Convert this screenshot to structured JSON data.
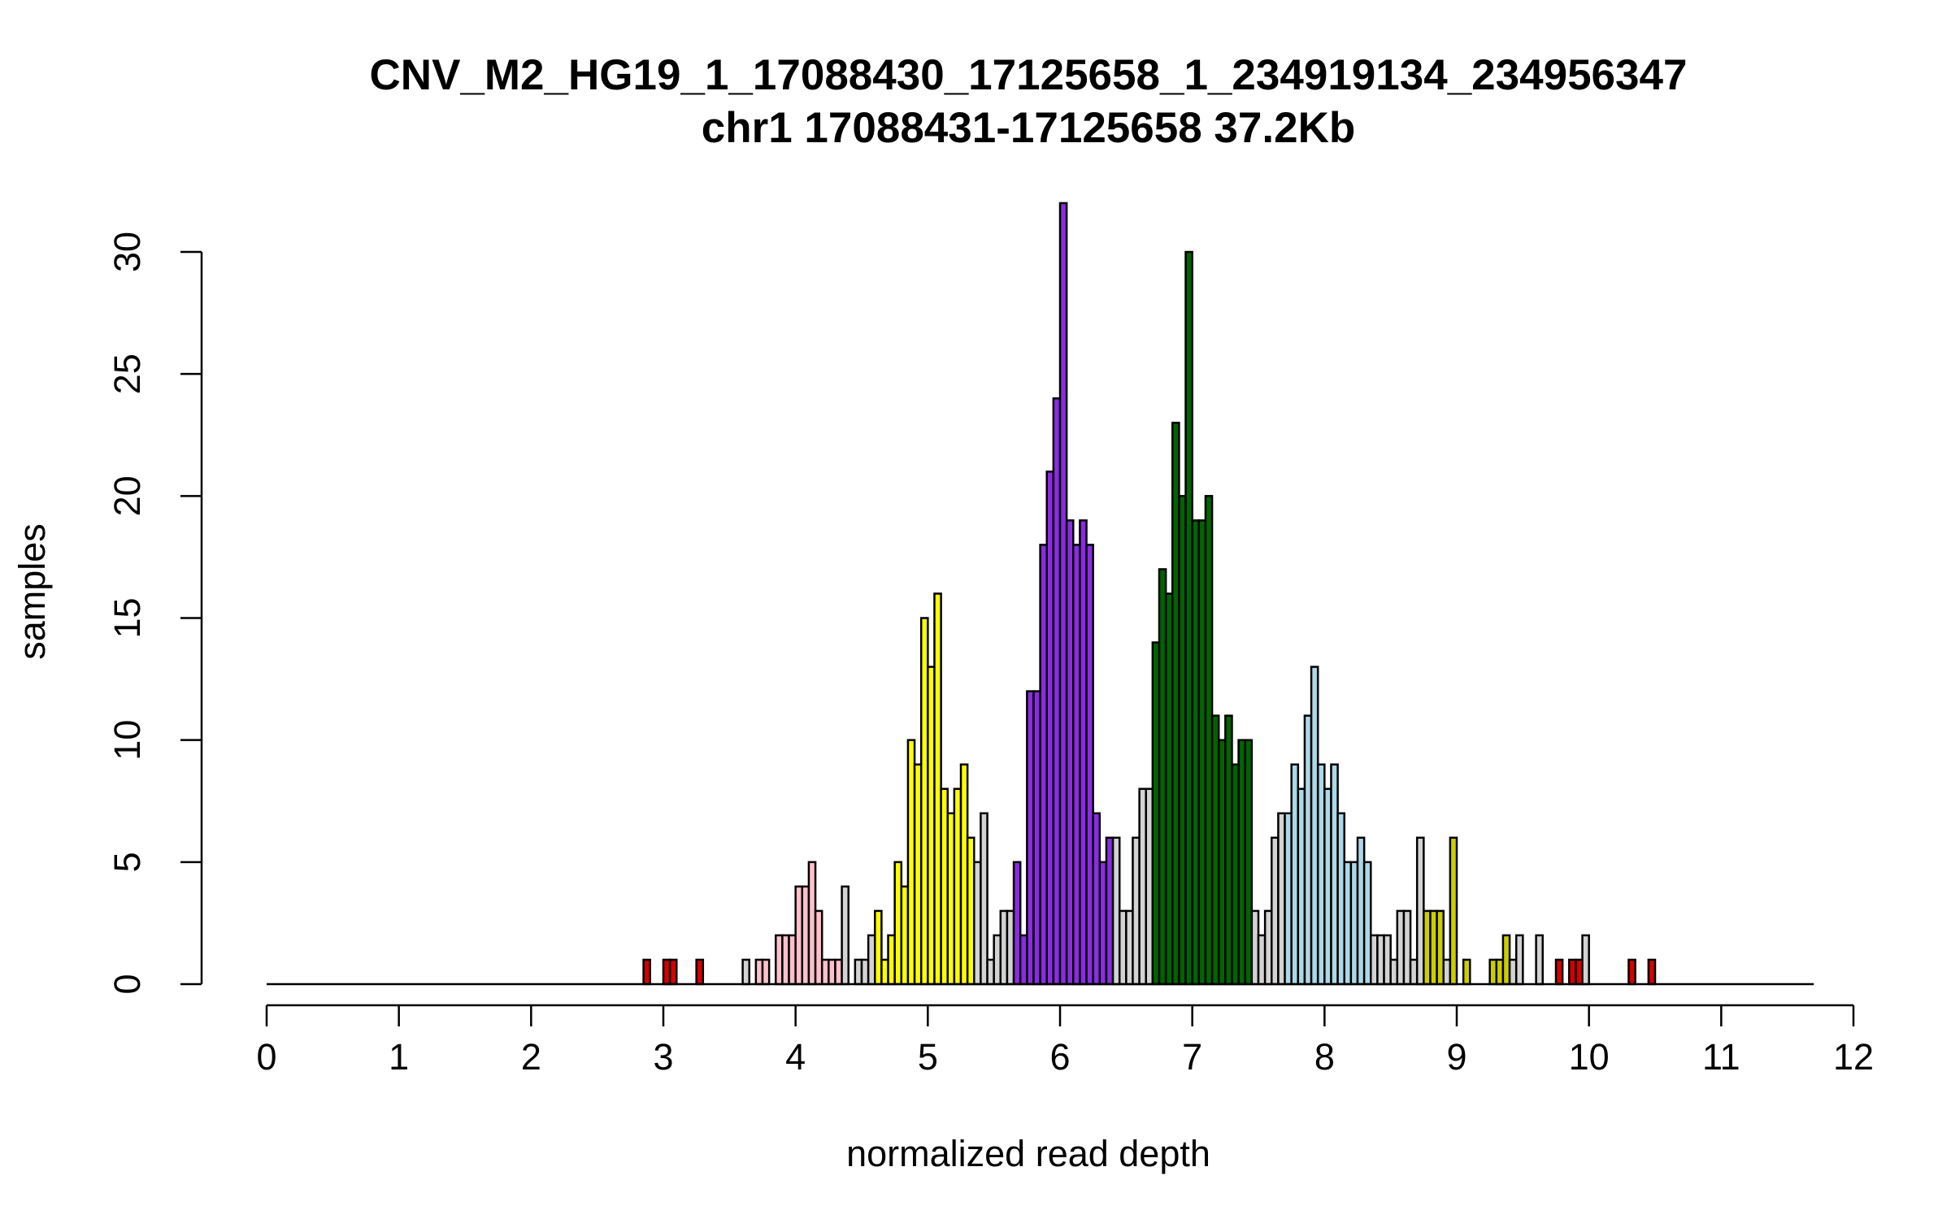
{
  "chart_data": {
    "type": "bar",
    "title": "CNV_M2_HG19_1_17088430_17125658_1_234919134_234956347",
    "subtitle": "chr1 17088431-17125658 37.2Kb",
    "xlabel": "normalized read depth",
    "ylabel": "samples",
    "xlim": [
      0,
      12
    ],
    "ylim": [
      0,
      30
    ],
    "x_ticks": [
      "0",
      "1",
      "2",
      "3",
      "4",
      "5",
      "6",
      "7",
      "8",
      "9",
      "10",
      "11",
      "12"
    ],
    "y_ticks": [
      "0",
      "5",
      "10",
      "15",
      "20",
      "25",
      "30"
    ],
    "bin_width": 0.05,
    "baseline": [
      0,
      11.7
    ],
    "series_colors": {
      "gray": "#d3d3d3",
      "red": "#d40000",
      "pink": "#ffc0cb",
      "yellow": "#ffff00",
      "purple": "#8b2be2",
      "green": "#006400",
      "lightblue": "#add8e6",
      "olive": "#cdcd00"
    },
    "bins": [
      [
        2.85,
        1,
        "red"
      ],
      [
        3.0,
        1,
        "red"
      ],
      [
        3.05,
        1,
        "red"
      ],
      [
        3.25,
        1,
        "red"
      ],
      [
        3.6,
        1,
        "gray"
      ],
      [
        3.7,
        1,
        "pink"
      ],
      [
        3.75,
        1,
        "pink"
      ],
      [
        3.85,
        2,
        "pink"
      ],
      [
        3.9,
        2,
        "pink"
      ],
      [
        3.95,
        2,
        "pink"
      ],
      [
        4.0,
        4,
        "pink"
      ],
      [
        4.05,
        4,
        "pink"
      ],
      [
        4.1,
        5,
        "pink"
      ],
      [
        4.15,
        3,
        "pink"
      ],
      [
        4.2,
        1,
        "pink"
      ],
      [
        4.25,
        1,
        "pink"
      ],
      [
        4.3,
        1,
        "pink"
      ],
      [
        4.35,
        4,
        "gray"
      ],
      [
        4.45,
        1,
        "gray"
      ],
      [
        4.5,
        1,
        "gray"
      ],
      [
        4.55,
        2,
        "gray"
      ],
      [
        4.6,
        3,
        "yellow"
      ],
      [
        4.65,
        1,
        "yellow"
      ],
      [
        4.7,
        2,
        "yellow"
      ],
      [
        4.75,
        5,
        "yellow"
      ],
      [
        4.8,
        4,
        "yellow"
      ],
      [
        4.85,
        10,
        "yellow"
      ],
      [
        4.9,
        9,
        "yellow"
      ],
      [
        4.95,
        15,
        "yellow"
      ],
      [
        5.0,
        13,
        "yellow"
      ],
      [
        5.05,
        16,
        "yellow"
      ],
      [
        5.1,
        8,
        "yellow"
      ],
      [
        5.15,
        7,
        "yellow"
      ],
      [
        5.2,
        8,
        "yellow"
      ],
      [
        5.25,
        9,
        "yellow"
      ],
      [
        5.3,
        6,
        "yellow"
      ],
      [
        5.35,
        5,
        "gray"
      ],
      [
        5.4,
        7,
        "gray"
      ],
      [
        5.45,
        1,
        "gray"
      ],
      [
        5.5,
        2,
        "gray"
      ],
      [
        5.55,
        3,
        "gray"
      ],
      [
        5.6,
        3,
        "gray"
      ],
      [
        5.65,
        5,
        "purple"
      ],
      [
        5.7,
        2,
        "purple"
      ],
      [
        5.75,
        12,
        "purple"
      ],
      [
        5.8,
        12,
        "purple"
      ],
      [
        5.85,
        18,
        "purple"
      ],
      [
        5.9,
        21,
        "purple"
      ],
      [
        5.95,
        24,
        "purple"
      ],
      [
        6.0,
        32,
        "purple"
      ],
      [
        6.05,
        19,
        "purple"
      ],
      [
        6.1,
        18,
        "purple"
      ],
      [
        6.15,
        19,
        "purple"
      ],
      [
        6.2,
        18,
        "purple"
      ],
      [
        6.25,
        7,
        "purple"
      ],
      [
        6.3,
        5,
        "purple"
      ],
      [
        6.35,
        6,
        "purple"
      ],
      [
        6.4,
        6,
        "gray"
      ],
      [
        6.45,
        3,
        "gray"
      ],
      [
        6.5,
        3,
        "gray"
      ],
      [
        6.55,
        6,
        "gray"
      ],
      [
        6.6,
        8,
        "gray"
      ],
      [
        6.65,
        8,
        "gray"
      ],
      [
        6.7,
        14,
        "green"
      ],
      [
        6.75,
        17,
        "green"
      ],
      [
        6.8,
        16,
        "green"
      ],
      [
        6.85,
        23,
        "green"
      ],
      [
        6.9,
        20,
        "green"
      ],
      [
        6.95,
        30,
        "green"
      ],
      [
        7.0,
        19,
        "green"
      ],
      [
        7.05,
        19,
        "green"
      ],
      [
        7.1,
        20,
        "green"
      ],
      [
        7.15,
        11,
        "green"
      ],
      [
        7.2,
        10,
        "green"
      ],
      [
        7.25,
        11,
        "green"
      ],
      [
        7.3,
        9,
        "green"
      ],
      [
        7.35,
        10,
        "green"
      ],
      [
        7.4,
        10,
        "green"
      ],
      [
        7.45,
        3,
        "gray"
      ],
      [
        7.5,
        2,
        "gray"
      ],
      [
        7.55,
        3,
        "gray"
      ],
      [
        7.6,
        6,
        "gray"
      ],
      [
        7.65,
        7,
        "gray"
      ],
      [
        7.7,
        7,
        "lightblue"
      ],
      [
        7.75,
        9,
        "lightblue"
      ],
      [
        7.8,
        8,
        "lightblue"
      ],
      [
        7.85,
        11,
        "lightblue"
      ],
      [
        7.9,
        13,
        "lightblue"
      ],
      [
        7.95,
        9,
        "lightblue"
      ],
      [
        8.0,
        8,
        "lightblue"
      ],
      [
        8.05,
        9,
        "lightblue"
      ],
      [
        8.1,
        7,
        "lightblue"
      ],
      [
        8.15,
        5,
        "lightblue"
      ],
      [
        8.2,
        5,
        "lightblue"
      ],
      [
        8.25,
        6,
        "lightblue"
      ],
      [
        8.3,
        5,
        "lightblue"
      ],
      [
        8.35,
        2,
        "gray"
      ],
      [
        8.4,
        2,
        "gray"
      ],
      [
        8.45,
        2,
        "gray"
      ],
      [
        8.5,
        1,
        "gray"
      ],
      [
        8.55,
        3,
        "gray"
      ],
      [
        8.6,
        3,
        "gray"
      ],
      [
        8.65,
        1,
        "gray"
      ],
      [
        8.7,
        6,
        "gray"
      ],
      [
        8.75,
        3,
        "olive"
      ],
      [
        8.8,
        3,
        "olive"
      ],
      [
        8.85,
        3,
        "olive"
      ],
      [
        8.9,
        1,
        "gray"
      ],
      [
        8.95,
        6,
        "olive"
      ],
      [
        9.05,
        1,
        "olive"
      ],
      [
        9.25,
        1,
        "olive"
      ],
      [
        9.3,
        1,
        "olive"
      ],
      [
        9.35,
        2,
        "olive"
      ],
      [
        9.4,
        1,
        "gray"
      ],
      [
        9.45,
        2,
        "gray"
      ],
      [
        9.6,
        2,
        "gray"
      ],
      [
        9.75,
        1,
        "red"
      ],
      [
        9.85,
        1,
        "red"
      ],
      [
        9.9,
        1,
        "red"
      ],
      [
        9.95,
        2,
        "gray"
      ],
      [
        10.3,
        1,
        "red"
      ],
      [
        10.45,
        1,
        "red"
      ]
    ]
  }
}
